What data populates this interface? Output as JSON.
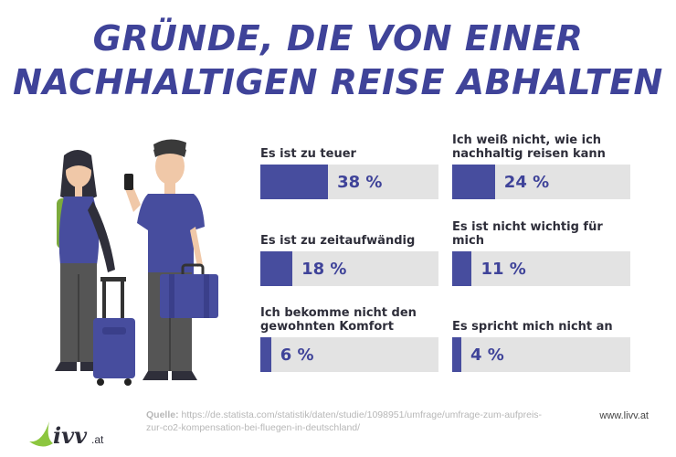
{
  "header": {
    "title_line1": "GRÜNDE, DIE VON EINER",
    "title_line2": "NACHHALTIGEN REISE ABHALTEN"
  },
  "chart_data": {
    "type": "bar",
    "title": "GRÜNDE, DIE VON EINER NACHHALTIGEN REISE ABHALTEN",
    "categories": [
      "Es ist zu teuer",
      "Ich weiß nicht, wie ich nachhaltig reisen kann",
      "Es ist zu zeitaufwändig",
      "Es ist nicht wichtig für mich",
      "Ich bekomme nicht den gewohnten Komfort",
      "Es spricht mich nicht an"
    ],
    "values": [
      38,
      24,
      18,
      11,
      6,
      4
    ],
    "value_labels": [
      "38 %",
      "24 %",
      "18 %",
      "11 %",
      "6 %",
      "4 %"
    ],
    "ylim": [
      0,
      100
    ],
    "xlabel": "",
    "ylabel": ""
  },
  "labels_display": [
    [
      "Es ist zu teuer"
    ],
    [
      "Ich weiß nicht, wie ich",
      "nachhaltig reisen kann"
    ],
    [
      "Es ist zu zeitaufwändig"
    ],
    [
      "Es ist nicht wichtig für mich"
    ],
    [
      "Ich bekomme nicht den",
      "gewohnten Komfort"
    ],
    [
      "Es spricht mich nicht an"
    ]
  ],
  "colors": {
    "accent": "#3f4399",
    "bar_fill": "#474d9e",
    "bar_track": "#e3e3e3",
    "logo_green": "#8cc63f"
  },
  "footer": {
    "source_label": "Quelle:",
    "source_url_line1": " https://de.statista.com/statistik/daten/studie/1098951/umfrage/umfrage-zum-aufpreis-",
    "source_url_line2": "zur-co2-kompensation-bei-fluegen-in-deutschland/",
    "website": "www.livv.at",
    "logo_text": "ivv",
    "logo_suffix": ".at"
  }
}
